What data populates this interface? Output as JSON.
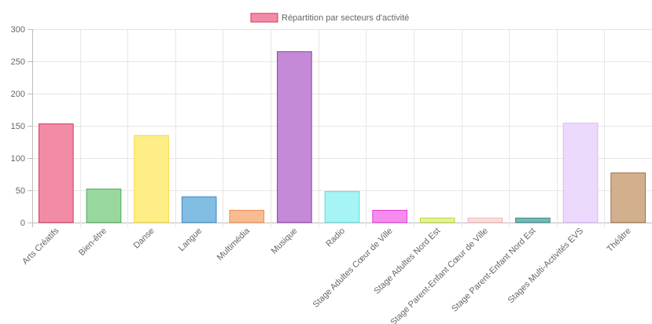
{
  "chart_data": {
    "type": "bar",
    "legend_position": "top",
    "grid": true,
    "ylim": [
      0,
      300
    ],
    "yticks": [
      0,
      50,
      100,
      150,
      200,
      250,
      300
    ],
    "series": [
      {
        "name": "Répartition par secteurs d'activité",
        "legend_fill": "#f28ba6",
        "legend_stroke": "#d9345e"
      }
    ],
    "categories": [
      "Arts Créatifs",
      "Bien-être",
      "Danse",
      "Langue",
      "Multimédia",
      "Musique",
      "Radio",
      "Stage Adultes Cœur de Ville",
      "Stage Adultes Nord Est",
      "Stage Parent-Enfant Cœur de Ville",
      "Stage Parent-Enfant Nord Est",
      "Stages Multi-Activités EVS",
      "Théâtre"
    ],
    "values": [
      153,
      52,
      135,
      40,
      19,
      265,
      48,
      19,
      7,
      7,
      7,
      154,
      77
    ],
    "fills": [
      "#f28ba6",
      "#98d89f",
      "#fdee87",
      "#82bde2",
      "#f8bc92",
      "#c48ad8",
      "#a6f4f5",
      "#f68cf0",
      "#e5f58f",
      "#fadcdc",
      "#76b8b5",
      "#ecdafd",
      "#d2b08d"
    ],
    "strokes": [
      "#d9345e",
      "#4daa56",
      "#f5d940",
      "#3a8ac9",
      "#f08a4f",
      "#8e3fa6",
      "#5fd9dc",
      "#e43dd9",
      "#bdd44a",
      "#f3b7b7",
      "#3a8a86",
      "#d8b6f8",
      "#9b7048"
    ]
  }
}
